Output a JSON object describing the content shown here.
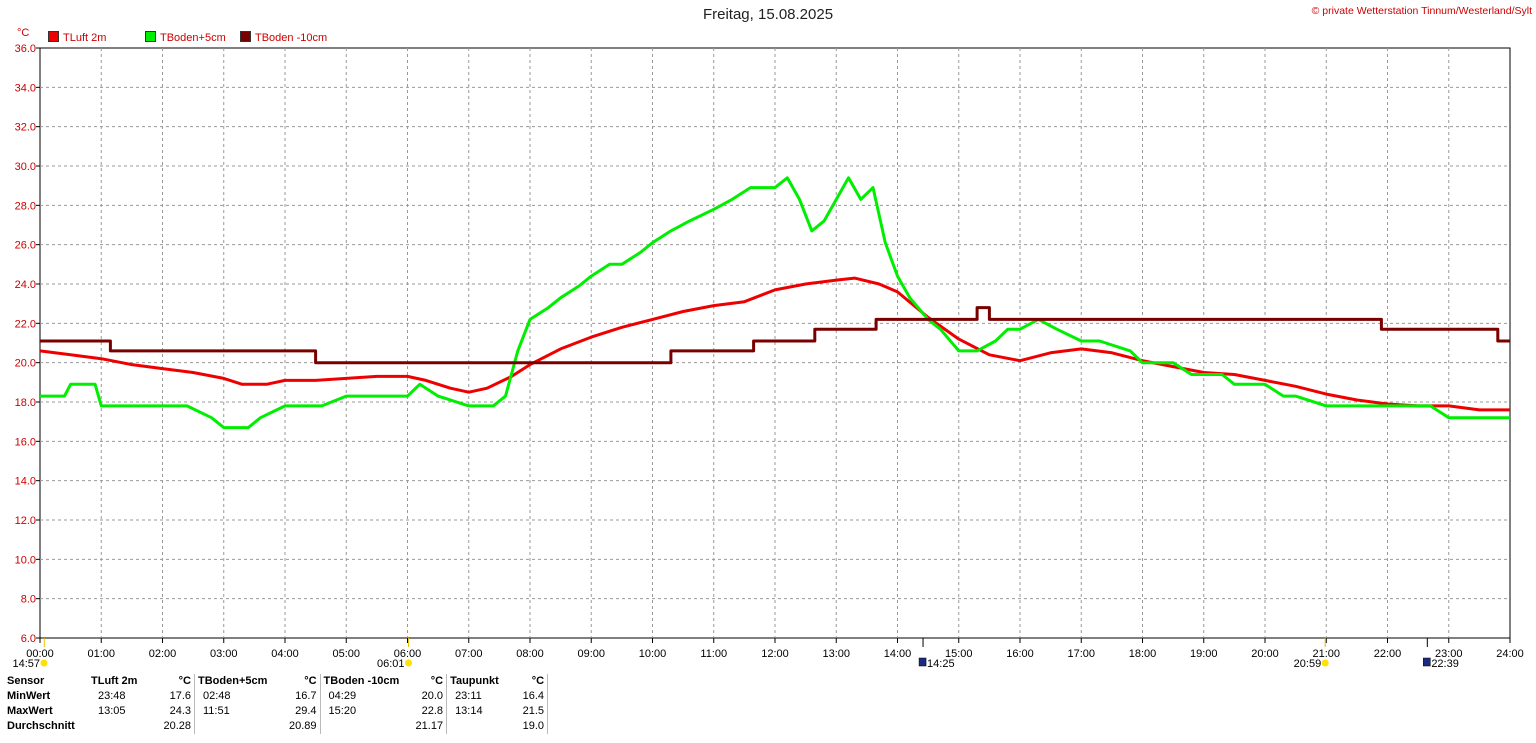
{
  "title": "Freitag, 15.08.2025",
  "copyright": "© private Wetterstation Tinnum/Westerland/Sylt",
  "unit": "°C",
  "legend": [
    {
      "label": "TLuft 2m",
      "color": "#ee0000"
    },
    {
      "label": "TBoden+5cm",
      "color": "#00ee00"
    },
    {
      "label": "TBoden -10cm",
      "color": "#7a0000"
    }
  ],
  "chart_data": {
    "type": "line",
    "title": "Freitag, 15.08.2025",
    "xlabel": "",
    "ylabel": "°C",
    "xlim": [
      0,
      24
    ],
    "ylim": [
      6,
      36
    ],
    "x_ticks": [
      "00:00",
      "01:00",
      "02:00",
      "03:00",
      "04:00",
      "05:00",
      "06:00",
      "07:00",
      "08:00",
      "09:00",
      "10:00",
      "11:00",
      "12:00",
      "13:00",
      "14:00",
      "15:00",
      "16:00",
      "17:00",
      "18:00",
      "19:00",
      "20:00",
      "21:00",
      "22:00",
      "23:00",
      "24:00"
    ],
    "y_ticks": [
      "6.0",
      "8.0",
      "10.0",
      "12.0",
      "14.0",
      "16.0",
      "18.0",
      "20.0",
      "22.0",
      "24.0",
      "26.0",
      "28.0",
      "30.0",
      "32.0",
      "34.0",
      "36.0"
    ],
    "grid": true,
    "legend_position": "top-left",
    "series": [
      {
        "name": "TLuft 2m",
        "color": "#ee0000",
        "x": [
          0,
          0.5,
          1,
          1.5,
          2,
          2.5,
          3,
          3.3,
          3.7,
          4,
          4.5,
          5,
          5.5,
          6,
          6.3,
          6.7,
          7,
          7.3,
          7.7,
          8,
          8.5,
          9,
          9.5,
          10,
          10.5,
          11,
          11.5,
          12,
          12.5,
          13,
          13.3,
          13.7,
          14,
          14.5,
          15,
          15.5,
          16,
          16.5,
          17,
          17.5,
          18,
          18.5,
          19,
          19.5,
          20,
          20.5,
          21,
          21.5,
          22,
          22.5,
          23,
          23.5,
          24
        ],
        "y": [
          20.6,
          20.4,
          20.2,
          19.9,
          19.7,
          19.5,
          19.2,
          18.9,
          18.9,
          19.1,
          19.1,
          19.2,
          19.3,
          19.3,
          19.1,
          18.7,
          18.5,
          18.7,
          19.3,
          19.9,
          20.7,
          21.3,
          21.8,
          22.2,
          22.6,
          22.9,
          23.1,
          23.7,
          24.0,
          24.2,
          24.3,
          24.0,
          23.6,
          22.3,
          21.2,
          20.4,
          20.1,
          20.5,
          20.7,
          20.5,
          20.1,
          19.8,
          19.5,
          19.4,
          19.1,
          18.8,
          18.4,
          18.1,
          17.9,
          17.8,
          17.8,
          17.6,
          17.6
        ]
      },
      {
        "name": "TBoden+5cm",
        "color": "#00ee00",
        "x": [
          0,
          0.4,
          0.5,
          0.9,
          1,
          2,
          2.4,
          2.8,
          3,
          3.4,
          3.6,
          4,
          4.4,
          4.6,
          5,
          5.5,
          5.9,
          6,
          6.2,
          6.5,
          7,
          7.4,
          7.6,
          7.8,
          8,
          8.3,
          8.5,
          8.8,
          9,
          9.3,
          9.5,
          9.8,
          10,
          10.3,
          10.6,
          11,
          11.3,
          11.6,
          12,
          12.2,
          12.4,
          12.6,
          12.8,
          13,
          13.2,
          13.4,
          13.6,
          13.8,
          14,
          14.2,
          14.5,
          14.7,
          15,
          15.3,
          15.6,
          15.8,
          16,
          16.3,
          16.6,
          17,
          17.3,
          17.8,
          18,
          18.5,
          18.8,
          19,
          19.3,
          19.5,
          20,
          20.3,
          20.5,
          21,
          21.5,
          22,
          22.3,
          22.7,
          23,
          24
        ],
        "y": [
          18.3,
          18.3,
          18.9,
          18.9,
          17.8,
          17.8,
          17.8,
          17.2,
          16.7,
          16.7,
          17.2,
          17.8,
          17.8,
          17.8,
          18.3,
          18.3,
          18.3,
          18.3,
          18.9,
          18.3,
          17.8,
          17.8,
          18.3,
          20.6,
          22.2,
          22.8,
          23.3,
          23.9,
          24.4,
          25.0,
          25.0,
          25.6,
          26.1,
          26.7,
          27.2,
          27.8,
          28.3,
          28.9,
          28.9,
          29.4,
          28.3,
          26.7,
          27.2,
          28.3,
          29.4,
          28.3,
          28.9,
          26.1,
          24.4,
          23.3,
          22.2,
          21.7,
          20.6,
          20.6,
          21.1,
          21.7,
          21.7,
          22.2,
          21.7,
          21.1,
          21.1,
          20.6,
          20.0,
          20.0,
          19.4,
          19.4,
          19.4,
          18.9,
          18.9,
          18.3,
          18.3,
          17.8,
          17.8,
          17.8,
          17.8,
          17.8,
          17.2,
          17.2
        ]
      },
      {
        "name": "TBoden -10cm",
        "color": "#7a0000",
        "x": [
          0,
          1.15,
          1.15,
          4.5,
          4.5,
          10.3,
          10.3,
          11.65,
          11.65,
          12.65,
          12.65,
          13.65,
          13.65,
          15.3,
          15.3,
          15.5,
          15.5,
          21.9,
          21.9,
          23.8,
          23.8,
          24
        ],
        "y": [
          21.1,
          21.1,
          20.6,
          20.6,
          20.0,
          20.0,
          20.6,
          20.6,
          21.1,
          21.1,
          21.7,
          21.7,
          22.2,
          22.2,
          22.8,
          22.8,
          22.2,
          22.2,
          21.7,
          21.7,
          21.1,
          21.1
        ]
      }
    ],
    "markers": [
      {
        "time": "14:57",
        "kind": "sunrise-marker"
      },
      {
        "time": "06:01",
        "kind": "sunrise-marker"
      },
      {
        "time": "14:25",
        "kind": "moon-marker"
      },
      {
        "time": "20:59",
        "kind": "sunset-marker"
      },
      {
        "time": "22:39",
        "kind": "moon-marker"
      }
    ],
    "marker_hours": [
      0.07,
      6.017,
      14.417,
      20.983,
      22.65
    ]
  },
  "stats": {
    "headers": [
      "Sensor",
      "TLuft 2m",
      "°C",
      "TBoden+5cm",
      "°C",
      "TBoden -10cm",
      "°C",
      "Taupunkt",
      "°C"
    ],
    "rows": [
      {
        "label": "MinWert",
        "c": [
          "23:48",
          "17.6",
          "02:48",
          "16.7",
          "04:29",
          "20.0",
          "23:11",
          "16.4"
        ]
      },
      {
        "label": "MaxWert",
        "c": [
          "13:05",
          "24.3",
          "11:51",
          "29.4",
          "15:20",
          "22.8",
          "13:14",
          "21.5"
        ]
      },
      {
        "label": "Durchschnitt",
        "c": [
          "",
          "20.28",
          "",
          "20.89",
          "",
          "21.17",
          "",
          "19.0"
        ]
      }
    ]
  }
}
